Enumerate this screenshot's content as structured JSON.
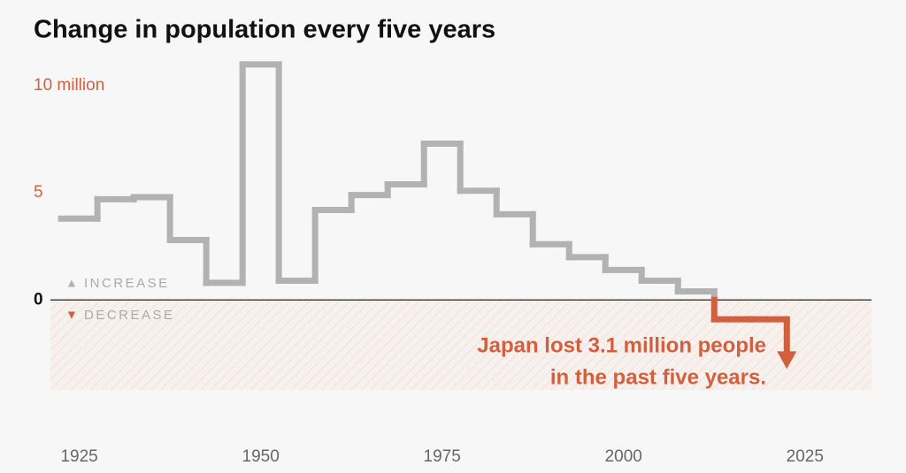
{
  "chart_data": {
    "type": "step",
    "title": "Change in population every five years",
    "x": [
      1925,
      1930,
      1935,
      1940,
      1945,
      1950,
      1955,
      1960,
      1965,
      1970,
      1975,
      1980,
      1985,
      1990,
      1995,
      2000,
      2005,
      2010,
      2015,
      2020,
      2025
    ],
    "values": [
      3.8,
      4.7,
      4.8,
      2.8,
      0.8,
      11.0,
      0.9,
      4.2,
      4.9,
      5.4,
      7.3,
      5.1,
      4.0,
      2.6,
      2.0,
      1.4,
      0.9,
      0.4,
      -0.9,
      -0.9,
      -3.1
    ],
    "color": "#b2b2b2",
    "negative_color": "#d0603f",
    "xlim": [
      1922,
      2036
    ],
    "ylim": [
      -4.2,
      11.2
    ],
    "xticks": [
      1925,
      1950,
      1975,
      2000,
      2025
    ],
    "yticks": [
      0,
      5,
      {
        "value": 10,
        "label": "10 million"
      }
    ],
    "legend": [
      "INCREASE",
      "DECREASE"
    ],
    "annotation": [
      "Japan lost 3.1 million people",
      "in the past five years."
    ]
  }
}
